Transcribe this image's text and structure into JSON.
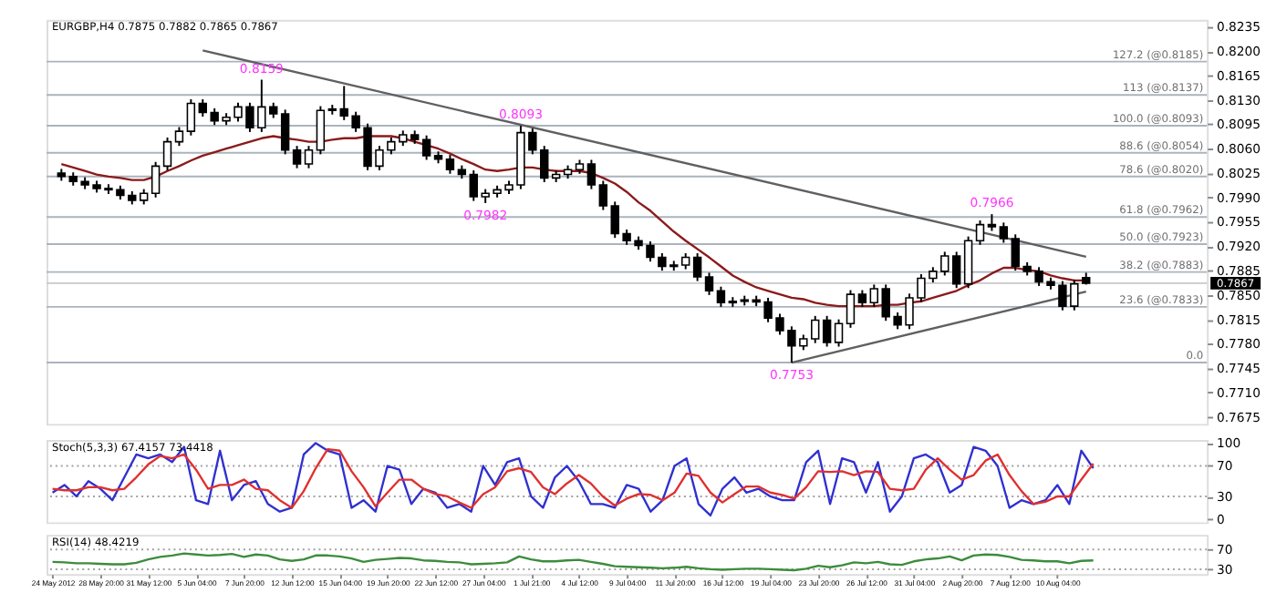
{
  "chart_data": [
    {
      "type": "candlestick",
      "title": "EURGBP,H4  0.7875 0.7882 0.7865 0.7867",
      "categories": [
        null,
        null,
        null,
        null,
        null,
        null,
        null,
        null,
        null,
        null,
        null,
        null,
        null,
        null,
        null,
        null,
        null,
        null,
        null,
        null,
        null,
        null,
        null,
        null,
        null,
        null,
        null,
        null,
        null,
        null,
        null,
        null,
        null,
        null,
        null,
        null,
        null,
        null,
        null,
        null,
        null,
        null,
        null,
        null,
        null,
        null,
        null,
        null,
        null,
        null,
        null,
        null,
        null,
        null,
        null,
        null,
        null,
        null,
        null,
        null,
        null,
        null,
        null,
        null,
        null,
        null,
        null,
        null,
        null,
        null,
        null,
        null,
        null,
        null,
        null,
        null,
        null,
        null,
        null,
        null,
        null,
        null,
        null,
        null,
        null,
        null,
        null,
        null
      ],
      "ohlc": [
        [
          0.8025,
          0.8031,
          0.8014,
          0.802
        ],
        [
          0.802,
          0.8026,
          0.8007,
          0.8013
        ],
        [
          0.8013,
          0.8019,
          0.8002,
          0.8008
        ],
        [
          0.8008,
          0.8014,
          0.7997,
          0.8003
        ],
        [
          0.8003,
          0.8009,
          0.7995,
          0.8001
        ],
        [
          0.8001,
          0.8007,
          0.7987,
          0.7993
        ],
        [
          0.7993,
          0.7999,
          0.798,
          0.7986
        ],
        [
          0.7986,
          0.8002,
          0.798,
          0.7996
        ],
        [
          0.7996,
          0.8041,
          0.799,
          0.8035
        ],
        [
          0.8035,
          0.8076,
          0.8029,
          0.807
        ],
        [
          0.807,
          0.8091,
          0.8064,
          0.8085
        ],
        [
          0.8085,
          0.8131,
          0.8079,
          0.8125
        ],
        [
          0.8125,
          0.8131,
          0.8106,
          0.8112
        ],
        [
          0.8112,
          0.8118,
          0.8094,
          0.81
        ],
        [
          0.81,
          0.8111,
          0.8094,
          0.8105
        ],
        [
          0.8105,
          0.8126,
          0.8099,
          0.812
        ],
        [
          0.812,
          0.8126,
          0.8084,
          0.809
        ],
        [
          0.809,
          0.8159,
          0.8084,
          0.812
        ],
        [
          0.812,
          0.8126,
          0.8104,
          0.811
        ],
        [
          0.811,
          0.8116,
          0.8052,
          0.8058
        ],
        [
          0.8058,
          0.8064,
          0.8032,
          0.8038
        ],
        [
          0.8038,
          0.8064,
          0.8032,
          0.8058
        ],
        [
          0.8058,
          0.8121,
          0.8052,
          0.8115
        ],
        [
          0.8115,
          0.8123,
          0.8109,
          0.8117
        ],
        [
          0.8117,
          0.815,
          0.8101,
          0.8107
        ],
        [
          0.8107,
          0.8113,
          0.8084,
          0.809
        ],
        [
          0.809,
          0.8096,
          0.8029,
          0.8035
        ],
        [
          0.8035,
          0.8064,
          0.8029,
          0.8058
        ],
        [
          0.8058,
          0.8076,
          0.8052,
          0.807
        ],
        [
          0.807,
          0.8086,
          0.8064,
          0.808
        ],
        [
          0.808,
          0.8086,
          0.8067,
          0.8073
        ],
        [
          0.8073,
          0.8079,
          0.8044,
          0.805
        ],
        [
          0.805,
          0.8056,
          0.8039,
          0.8045
        ],
        [
          0.8045,
          0.8051,
          0.8024,
          0.803
        ],
        [
          0.803,
          0.8036,
          0.8017,
          0.8023
        ],
        [
          0.8023,
          0.8029,
          0.7985,
          0.7991
        ],
        [
          0.7991,
          0.8002,
          0.7982,
          0.7996
        ],
        [
          0.7996,
          0.8007,
          0.799,
          0.8001
        ],
        [
          0.8001,
          0.8014,
          0.7995,
          0.8008
        ],
        [
          0.8008,
          0.8093,
          0.8002,
          0.8083
        ],
        [
          0.8083,
          0.8089,
          0.8052,
          0.8058
        ],
        [
          0.8058,
          0.8064,
          0.8012,
          0.8018
        ],
        [
          0.8018,
          0.8029,
          0.8012,
          0.8023
        ],
        [
          0.8023,
          0.8036,
          0.8017,
          0.803
        ],
        [
          0.803,
          0.8044,
          0.8024,
          0.8038
        ],
        [
          0.8038,
          0.8044,
          0.8002,
          0.8008
        ],
        [
          0.8008,
          0.8014,
          0.7972,
          0.7978
        ],
        [
          0.7978,
          0.7984,
          0.7932,
          0.7938
        ],
        [
          0.7938,
          0.7944,
          0.7922,
          0.7928
        ],
        [
          0.7928,
          0.7934,
          0.7915,
          0.7921
        ],
        [
          0.7921,
          0.7927,
          0.7898,
          0.7904
        ],
        [
          0.7904,
          0.791,
          0.7885,
          0.7891
        ],
        [
          0.7891,
          0.7899,
          0.7885,
          0.7893
        ],
        [
          0.7893,
          0.791,
          0.7887,
          0.7904
        ],
        [
          0.7904,
          0.791,
          0.787,
          0.7876
        ],
        [
          0.7876,
          0.7882,
          0.785,
          0.7856
        ],
        [
          0.7856,
          0.7862,
          0.7833,
          0.7839
        ],
        [
          0.7839,
          0.7847,
          0.7833,
          0.7841
        ],
        [
          0.7841,
          0.7849,
          0.7835,
          0.7843
        ],
        [
          0.7843,
          0.7849,
          0.7834,
          0.784
        ],
        [
          0.784,
          0.7846,
          0.7811,
          0.7817
        ],
        [
          0.7817,
          0.7823,
          0.7793,
          0.7799
        ],
        [
          0.7799,
          0.7805,
          0.7753,
          0.7777
        ],
        [
          0.7777,
          0.7793,
          0.7771,
          0.7787
        ],
        [
          0.7787,
          0.782,
          0.7781,
          0.7814
        ],
        [
          0.7814,
          0.782,
          0.7776,
          0.7782
        ],
        [
          0.7782,
          0.7815,
          0.7776,
          0.7809
        ],
        [
          0.7809,
          0.7857,
          0.7803,
          0.7851
        ],
        [
          0.7851,
          0.7857,
          0.7833,
          0.7839
        ],
        [
          0.7839,
          0.7865,
          0.7833,
          0.7859
        ],
        [
          0.7859,
          0.7865,
          0.7813,
          0.7819
        ],
        [
          0.7819,
          0.7825,
          0.7801,
          0.7807
        ],
        [
          0.7807,
          0.7852,
          0.7801,
          0.7846
        ],
        [
          0.7846,
          0.788,
          0.784,
          0.7874
        ],
        [
          0.7874,
          0.789,
          0.7868,
          0.7884
        ],
        [
          0.7884,
          0.7912,
          0.7878,
          0.7906
        ],
        [
          0.7906,
          0.7912,
          0.786,
          0.7866
        ],
        [
          0.7866,
          0.7934,
          0.786,
          0.7928
        ],
        [
          0.7928,
          0.7957,
          0.7922,
          0.7951
        ],
        [
          0.7951,
          0.7966,
          0.7942,
          0.7948
        ],
        [
          0.7948,
          0.7954,
          0.7925,
          0.7931
        ],
        [
          0.7931,
          0.7937,
          0.7885,
          0.7891
        ],
        [
          0.7891,
          0.7897,
          0.7878,
          0.7884
        ],
        [
          0.7884,
          0.789,
          0.7863,
          0.7869
        ],
        [
          0.7869,
          0.7875,
          0.7858,
          0.7864
        ],
        [
          0.7864,
          0.787,
          0.7828,
          0.7834
        ],
        [
          0.7834,
          0.7872,
          0.7828,
          0.7866
        ],
        [
          0.7875,
          0.7882,
          0.7865,
          0.7867
        ]
      ],
      "series": [
        {
          "type": "line",
          "color": "#8b1a1a",
          "values": [
            0.8038,
            0.8033,
            0.8028,
            0.8023,
            0.802,
            0.8018,
            0.8015,
            0.8015,
            0.802,
            0.8028,
            0.8035,
            0.8043,
            0.805,
            0.8055,
            0.806,
            0.8065,
            0.807,
            0.8075,
            0.8078,
            0.8075,
            0.8073,
            0.807,
            0.807,
            0.8073,
            0.8075,
            0.8075,
            0.8078,
            0.8078,
            0.8078,
            0.8075,
            0.807,
            0.8065,
            0.806,
            0.8053,
            0.8045,
            0.8038,
            0.803,
            0.8028,
            0.803,
            0.8033,
            0.8033,
            0.803,
            0.8028,
            0.8028,
            0.8028,
            0.8025,
            0.8018,
            0.801,
            0.7998,
            0.7983,
            0.7971,
            0.7956,
            0.7941,
            0.7928,
            0.7916,
            0.7904,
            0.7891,
            0.7878,
            0.7869,
            0.7861,
            0.7856,
            0.7851,
            0.7846,
            0.7844,
            0.7839,
            0.7836,
            0.7834,
            0.7834,
            0.7834,
            0.7834,
            0.7836,
            0.7836,
            0.7839,
            0.7841,
            0.7846,
            0.7851,
            0.7856,
            0.7864,
            0.7871,
            0.7881,
            0.7889,
            0.7889,
            0.7886,
            0.7884,
            0.7878,
            0.7874,
            0.7871,
            0.7871
          ]
        },
        {
          "type": "line",
          "color": "#606060",
          "values": [
            null,
            null,
            null,
            null,
            null,
            null,
            null,
            null,
            null,
            null,
            null,
            null,
            0.8201,
            null,
            null,
            null,
            null,
            null,
            null,
            null,
            null,
            null,
            null,
            null,
            null,
            null,
            null,
            null,
            null,
            null,
            null,
            null,
            null,
            null,
            null,
            null,
            null,
            null,
            null,
            null,
            null,
            null,
            null,
            null,
            null,
            null,
            null,
            null,
            null,
            null,
            null,
            null,
            null,
            null,
            null,
            null,
            null,
            null,
            null,
            null,
            null,
            null,
            null,
            null,
            null,
            null,
            null,
            null,
            null,
            null,
            null,
            null,
            null,
            null,
            null,
            null,
            null,
            null,
            null,
            null,
            null,
            null,
            null,
            null,
            null,
            null,
            null,
            0.7905
          ]
        },
        {
          "type": "line",
          "color": "#606060",
          "values": [
            null,
            null,
            null,
            null,
            null,
            null,
            null,
            null,
            null,
            null,
            null,
            null,
            null,
            null,
            null,
            null,
            null,
            null,
            null,
            null,
            null,
            null,
            null,
            null,
            null,
            null,
            null,
            null,
            null,
            null,
            null,
            null,
            null,
            null,
            null,
            null,
            null,
            null,
            null,
            null,
            null,
            null,
            null,
            null,
            null,
            null,
            null,
            null,
            null,
            null,
            null,
            null,
            null,
            null,
            null,
            null,
            null,
            null,
            null,
            null,
            null,
            null,
            0.7753,
            null,
            null,
            null,
            null,
            null,
            null,
            null,
            null,
            null,
            null,
            null,
            null,
            null,
            null,
            null,
            null,
            null,
            null,
            null,
            null,
            null,
            null,
            null,
            null,
            0.7855
          ]
        }
      ],
      "ylim": [
        0.7665,
        0.8245
      ],
      "yticks": [
        0.7675,
        {
          "value": 0.771,
          "label": "0.7710"
        },
        0.7745,
        {
          "value": 0.778,
          "label": "0.7780"
        },
        0.7815,
        {
          "value": 0.785,
          "label": "0.7850"
        },
        0.7885,
        {
          "value": 0.792,
          "label": "0.7920"
        },
        0.7955,
        {
          "value": 0.799,
          "label": "0.7990"
        },
        0.8025,
        {
          "value": 0.806,
          "label": "0.8060"
        },
        0.8095,
        {
          "value": 0.813,
          "label": "0.8130"
        },
        0.8165,
        {
          "value": 0.82,
          "label": "0.8200"
        },
        0.8235
      ],
      "ref_lines": [
        {
          "axis": "y",
          "value": 0.8185,
          "label": "127.2 (@0.8185)",
          "color": "#aab4be"
        },
        {
          "axis": "y",
          "value": 0.8137,
          "label": "113 (@0.8137)",
          "color": "#aab4be"
        },
        {
          "axis": "y",
          "value": 0.8093,
          "label": "100.0 (@0.8093)",
          "color": "#aab4be"
        },
        {
          "axis": "y",
          "value": 0.8054,
          "label": "88.6 (@0.8054)",
          "color": "#aab4be"
        },
        {
          "axis": "y",
          "value": 0.802,
          "label": "78.6 (@0.8020)",
          "color": "#aab4be"
        },
        {
          "axis": "y",
          "value": 0.7962,
          "label": "61.8 (@0.7962)",
          "color": "#aab4be"
        },
        {
          "axis": "y",
          "value": 0.7923,
          "label": "50.0 (@0.7923)",
          "color": "#aab4be"
        },
        {
          "axis": "y",
          "value": 0.7883,
          "label": "38.2 (@0.7883)",
          "color": "#aab4be"
        },
        {
          "axis": "y",
          "value": 0.7833,
          "label": "23.6 (@0.7833)",
          "color": "#aab4be"
        },
        {
          "axis": "y",
          "value": 0.7753,
          "color": "#aab4be"
        },
        {
          "axis": "y",
          "value": 0.7867,
          "color": "#c8c8c8"
        }
      ],
      "annotations": [
        {
          "text": "0.8159",
          "y": 0.8159
        },
        {
          "text": "0.8093",
          "y": 0.8093
        },
        {
          "text": "0.7982",
          "y": 0.7982
        },
        {
          "text": "0.0",
          "y": 0.7753
        },
        {
          "text": "0.7753",
          "y": 0.7753
        },
        {
          "text": "0.7966",
          "y": 0.7966
        },
        "0.7867"
      ],
      "tick_labels": "y",
      "grid": false
    },
    {
      "type": "line",
      "title": "Stoch(5,3,3) 67.4157 73.4418",
      "categories": [
        null,
        null,
        null,
        null,
        null,
        null,
        null,
        null,
        null,
        null,
        null,
        null,
        null,
        null,
        null,
        null,
        null,
        null,
        null,
        null,
        null,
        null,
        null,
        null,
        null,
        null,
        null,
        null,
        null,
        null,
        null,
        null,
        null,
        null,
        null,
        null,
        null,
        null,
        null,
        null,
        null,
        null,
        null,
        null,
        null,
        null,
        null,
        null,
        null,
        null,
        null,
        null,
        null,
        null,
        null,
        null,
        null,
        null,
        null,
        null,
        null,
        null,
        null,
        null,
        null,
        null,
        null,
        null,
        null,
        null,
        null,
        null,
        null,
        null,
        null,
        null,
        null,
        null,
        null,
        null,
        null,
        null,
        null,
        null,
        null,
        null,
        null,
        null
      ],
      "series": [
        {
          "color": "#3030d0",
          "values": [
            35,
            45,
            30,
            50,
            40,
            25,
            55,
            85,
            80,
            85,
            75,
            95,
            25,
            20,
            90,
            25,
            45,
            50,
            20,
            10,
            15,
            85,
            100,
            90,
            85,
            15,
            25,
            10,
            70,
            65,
            20,
            40,
            35,
            15,
            20,
            10,
            70,
            45,
            75,
            80,
            30,
            15,
            55,
            70,
            50,
            20,
            20,
            15,
            45,
            40,
            10,
            25,
            70,
            80,
            20,
            5,
            40,
            55,
            35,
            40,
            30,
            25,
            25,
            75,
            90,
            20,
            80,
            75,
            35,
            75,
            10,
            30,
            80,
            85,
            75,
            35,
            45,
            95,
            90,
            70,
            15,
            25,
            20,
            25,
            45,
            20,
            90,
            67
          ]
        },
        {
          "color": "#e03030",
          "values": [
            40,
            38,
            38,
            42,
            42,
            38,
            40,
            55,
            72,
            83,
            80,
            85,
            65,
            40,
            45,
            45,
            52,
            40,
            38,
            25,
            15,
            37,
            67,
            92,
            90,
            63,
            42,
            17,
            35,
            52,
            52,
            40,
            33,
            30,
            22,
            15,
            33,
            42,
            63,
            67,
            62,
            42,
            33,
            47,
            58,
            47,
            30,
            18,
            27,
            33,
            32,
            25,
            35,
            60,
            57,
            35,
            22,
            33,
            43,
            43,
            35,
            32,
            27,
            42,
            63,
            62,
            63,
            58,
            63,
            62,
            40,
            38,
            40,
            65,
            80,
            65,
            52,
            58,
            77,
            85,
            58,
            37,
            20,
            23,
            30,
            30,
            52,
            73
          ]
        }
      ],
      "ylim": [
        -4,
        104
      ],
      "yticks": [
        0,
        30,
        70,
        100
      ],
      "ref_lines": [
        {
          "axis": "y",
          "value": 30,
          "color": "#a0a0a0",
          "line_style": "dotted"
        },
        {
          "axis": "y",
          "value": 70,
          "color": "#a0a0a0",
          "line_style": "dotted"
        }
      ],
      "tick_labels": "y",
      "grid": false
    },
    {
      "type": "line",
      "title": "RSI(14) 48.4219",
      "categories": [
        "24 May 2012",
        null,
        null,
        null,
        "28 May 20:00",
        null,
        null,
        null,
        "31 May 12:00",
        null,
        null,
        null,
        "5 Jun 04:00",
        null,
        null,
        null,
        "7 Jun 20:00",
        null,
        null,
        null,
        "12 Jun 12:00",
        null,
        null,
        null,
        "15 Jun 04:00",
        null,
        null,
        null,
        "19 Jun 20:00",
        null,
        null,
        null,
        "22 Jun 12:00",
        null,
        null,
        null,
        "27 Jun 04:00",
        null,
        null,
        null,
        "1 Jul 21:00",
        null,
        null,
        null,
        "4 Jul 12:00",
        null,
        null,
        null,
        "9 Jul 04:00",
        null,
        null,
        null,
        "11 Jul 20:00",
        null,
        null,
        null,
        "16 Jul 12:00",
        null,
        null,
        null,
        "19 Jul 04:00",
        null,
        null,
        null,
        "23 Jul 20:00",
        null,
        null,
        null,
        "26 Jul 12:00",
        null,
        null,
        null,
        "31 Jul 04:00",
        null,
        null,
        null,
        "2 Aug 20:00",
        null,
        null,
        null,
        "7 Aug 12:00",
        null,
        null,
        null,
        "10 Aug 04:00",
        null,
        null,
        null
      ],
      "series": [
        {
          "color": "#3c8c3c",
          "values": [
            45,
            44,
            42,
            42,
            41,
            40,
            40,
            43,
            50,
            55,
            58,
            62,
            60,
            58,
            59,
            61,
            55,
            60,
            58,
            50,
            47,
            50,
            58,
            58,
            56,
            52,
            45,
            49,
            51,
            53,
            52,
            48,
            47,
            45,
            44,
            40,
            41,
            42,
            44,
            56,
            50,
            46,
            46,
            48,
            49,
            45,
            41,
            36,
            35,
            34,
            33,
            32,
            33,
            35,
            32,
            30,
            29,
            30,
            31,
            31,
            30,
            29,
            28,
            31,
            37,
            34,
            38,
            44,
            42,
            45,
            40,
            39,
            46,
            50,
            52,
            56,
            48,
            58,
            60,
            59,
            55,
            49,
            48,
            46,
            46,
            42,
            47,
            48
          ]
        }
      ],
      "ylim": [
        20,
        100
      ],
      "yticks": [
        30,
        70
      ],
      "ref_lines": [
        {
          "axis": "y",
          "value": 30,
          "color": "#a0a0a0",
          "line_style": "dotted"
        },
        {
          "axis": "y",
          "value": 70,
          "color": "#a0a0a0",
          "line_style": "dotted"
        }
      ],
      "grid": false
    }
  ]
}
